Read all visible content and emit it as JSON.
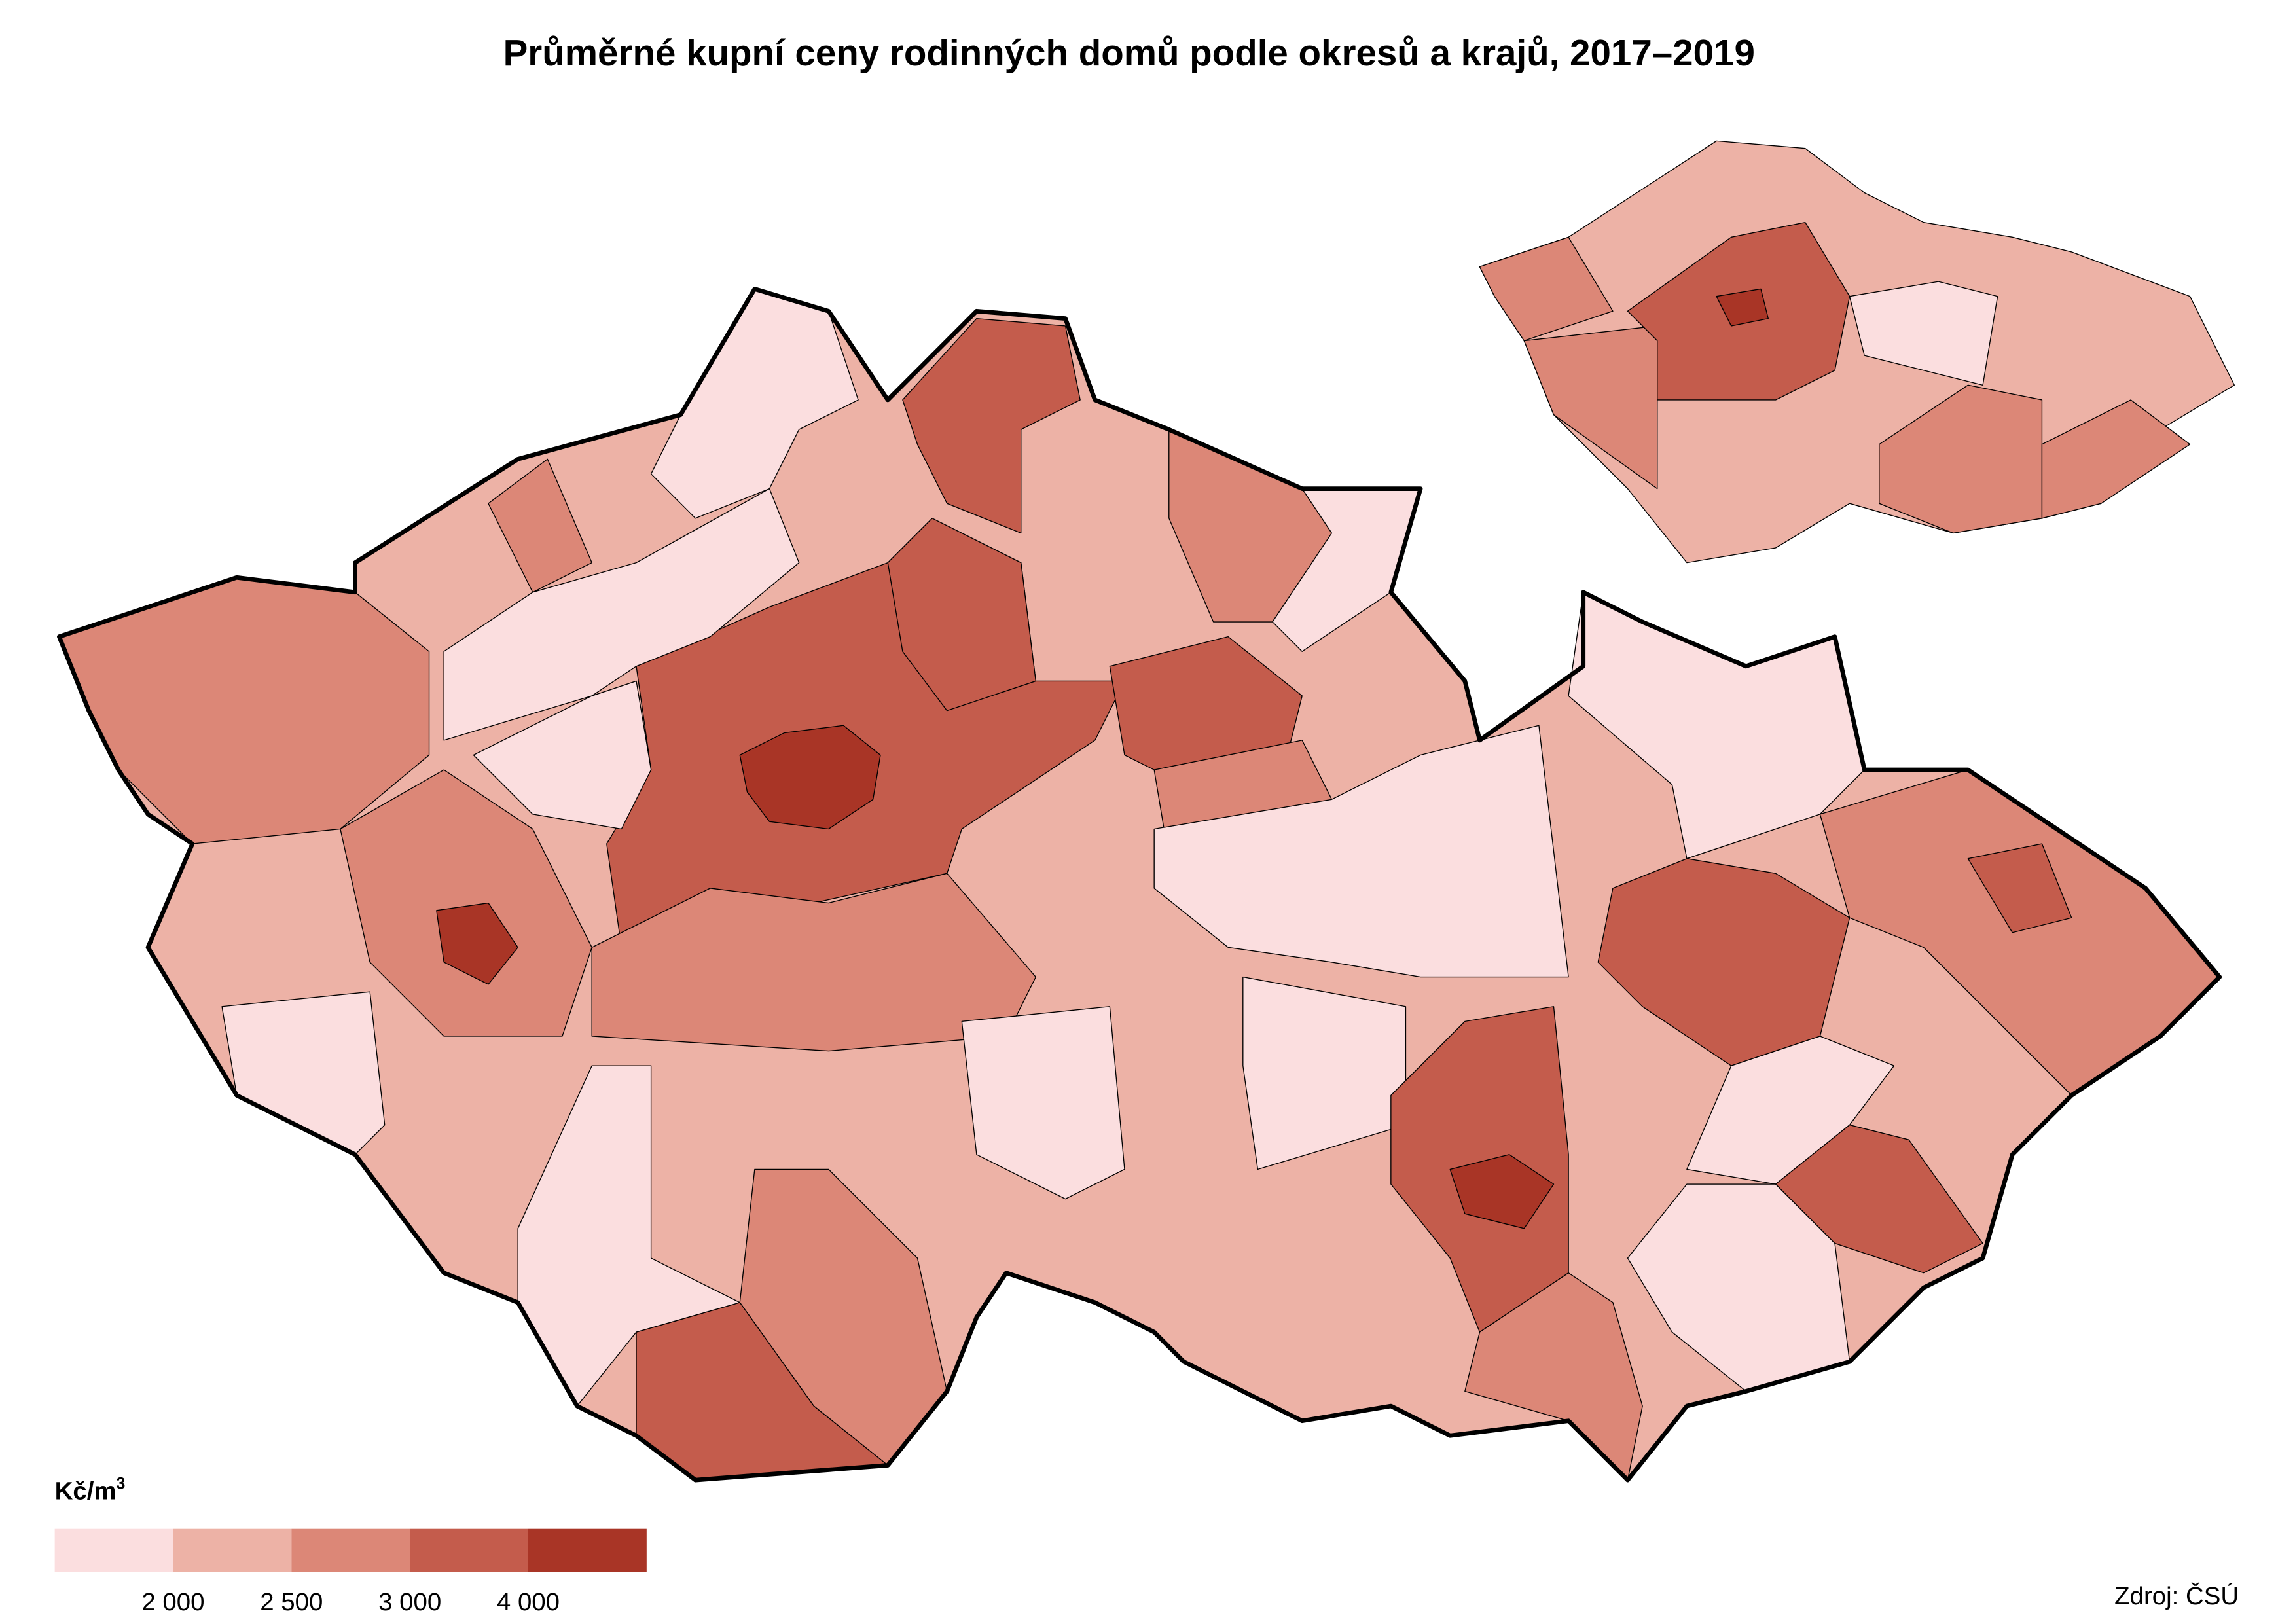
{
  "header": {
    "title": "Průměrné kupní ceny rodinných domů podle okresů a krajů, 2017–2019"
  },
  "legend": {
    "unit": "Kč/m",
    "unit_superscript": "3",
    "classes": [
      {
        "color": "#fbdedf"
      },
      {
        "color": "#edb2a6"
      },
      {
        "color": "#dc8777"
      },
      {
        "color": "#c45c4c"
      },
      {
        "color": "#a93526"
      }
    ],
    "ticks": [
      "2 000",
      "2 500",
      "3 000",
      "4 000"
    ]
  },
  "source": "Zdroj: ČSÚ"
}
